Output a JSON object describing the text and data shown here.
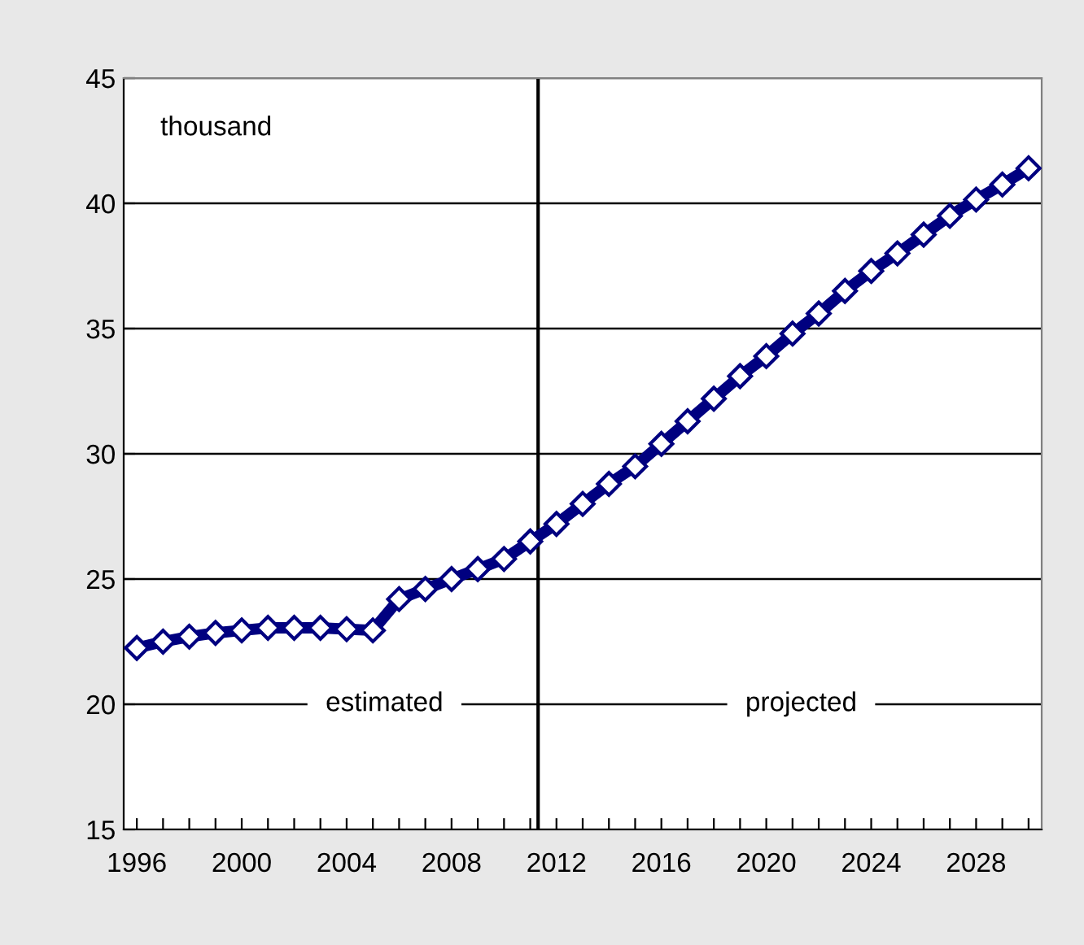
{
  "chart_data": {
    "type": "line",
    "x": [
      1996,
      1997,
      1998,
      1999,
      2000,
      2001,
      2002,
      2003,
      2004,
      2005,
      2006,
      2007,
      2008,
      2009,
      2010,
      2011,
      2012,
      2013,
      2014,
      2015,
      2016,
      2017,
      2018,
      2019,
      2020,
      2021,
      2022,
      2023,
      2024,
      2025,
      2026,
      2027,
      2028,
      2029,
      2030
    ],
    "series": [
      {
        "color": "#000080",
        "values": [
          22.25,
          22.5,
          22.7,
          22.85,
          22.95,
          23.05,
          23.05,
          23.05,
          23.0,
          22.95,
          24.2,
          24.6,
          25.0,
          25.4,
          25.8,
          26.5,
          27.2,
          28.0,
          28.8,
          29.5,
          30.4,
          31.3,
          32.2,
          33.1,
          33.9,
          34.8,
          35.6,
          36.5,
          37.3,
          38.0,
          38.75,
          39.5,
          40.15,
          40.75,
          41.4
        ]
      }
    ],
    "marker": "diamond",
    "line_style": "solid",
    "xlim": [
      1995.5,
      2030.5
    ],
    "xticks": [
      1996,
      {
        "value": 1997,
        "label": null
      },
      {
        "value": 1998,
        "label": null
      },
      {
        "value": 1999,
        "label": null
      },
      2000,
      {
        "value": 2001,
        "label": null
      },
      {
        "value": 2002,
        "label": null
      },
      {
        "value": 2003,
        "label": null
      },
      2004,
      {
        "value": 2005,
        "label": null
      },
      {
        "value": 2006,
        "label": null
      },
      {
        "value": 2007,
        "label": null
      },
      2008,
      {
        "value": 2009,
        "label": null
      },
      {
        "value": 2010,
        "label": null
      },
      {
        "value": 2011,
        "label": null
      },
      2012,
      {
        "value": 2013,
        "label": null
      },
      {
        "value": 2014,
        "label": null
      },
      {
        "value": 2015,
        "label": null
      },
      2016,
      {
        "value": 2017,
        "label": null
      },
      {
        "value": 2018,
        "label": null
      },
      {
        "value": 2019,
        "label": null
      },
      2020,
      {
        "value": 2021,
        "label": null
      },
      {
        "value": 2022,
        "label": null
      },
      {
        "value": 2023,
        "label": null
      },
      2024,
      {
        "value": 2025,
        "label": null
      },
      {
        "value": 2026,
        "label": null
      },
      {
        "value": 2027,
        "label": null
      },
      2028,
      {
        "value": 2029,
        "label": null
      },
      {
        "value": 2030,
        "label": null
      }
    ],
    "ylim": [
      15,
      45
    ],
    "yticks": [
      15,
      20,
      25,
      30,
      35,
      40,
      45
    ],
    "grid": "y",
    "ref_lines": [
      {
        "axis": "x",
        "value": 2011.3,
        "color": "#000000"
      }
    ],
    "annotations": [
      "thousand",
      "estimated",
      "projected"
    ]
  }
}
